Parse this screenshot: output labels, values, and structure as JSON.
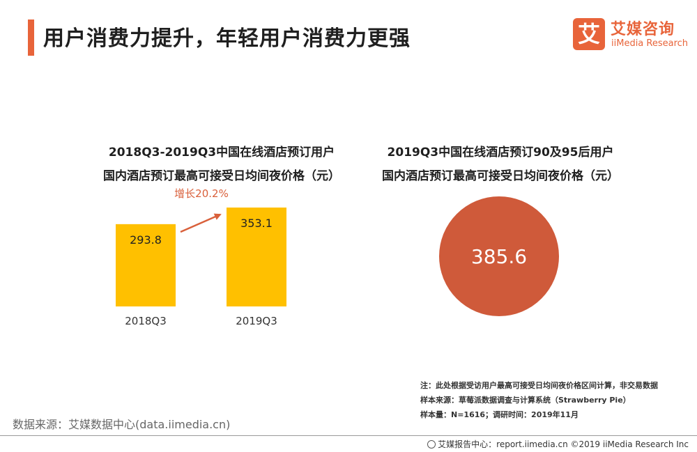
{
  "header": {
    "title": "用户消费力提升，年轻用户消费力更强"
  },
  "logo": {
    "mark": "艾",
    "cn_name": "艾媒咨询",
    "en_name": "iiMedia Research"
  },
  "chart_data": [
    {
      "type": "bar",
      "title_line1": "2018Q3-2019Q3中国在线酒店预订用户",
      "title_line2": "国内酒店预订最高可接受日均间夜价格（元）",
      "categories": [
        "2018Q3",
        "2019Q3"
      ],
      "values": [
        293.8,
        353.1
      ],
      "value_labels": [
        "293.8",
        "353.1"
      ],
      "ylim": [
        0,
        353.1
      ],
      "bar_color": "#ffc000",
      "annotation": "增长20.2%",
      "annotation_color": "#d9603b"
    },
    {
      "type": "pie",
      "title_line1": "2019Q3中国在线酒店预订90及95后用户",
      "title_line2": "国内酒店预订最高可接受日均间夜价格（元）",
      "values": [
        385.6
      ],
      "value_labels": [
        "385.6"
      ],
      "color": "#cf5a3a"
    }
  ],
  "notes": [
    "注：此处根据受访用户最高可接受日均间夜价格区间计算，非交易数据",
    "样本来源：草莓派数据调查与计算系统（Strawberry Pie）",
    "样本量：N=1616；调研时间：2019年11月"
  ],
  "source": "数据来源：艾媒数据中心(data.iimedia.cn)",
  "footer": "艾媒报告中心：report.iimedia.cn  ©2019  iiMedia Research Inc"
}
